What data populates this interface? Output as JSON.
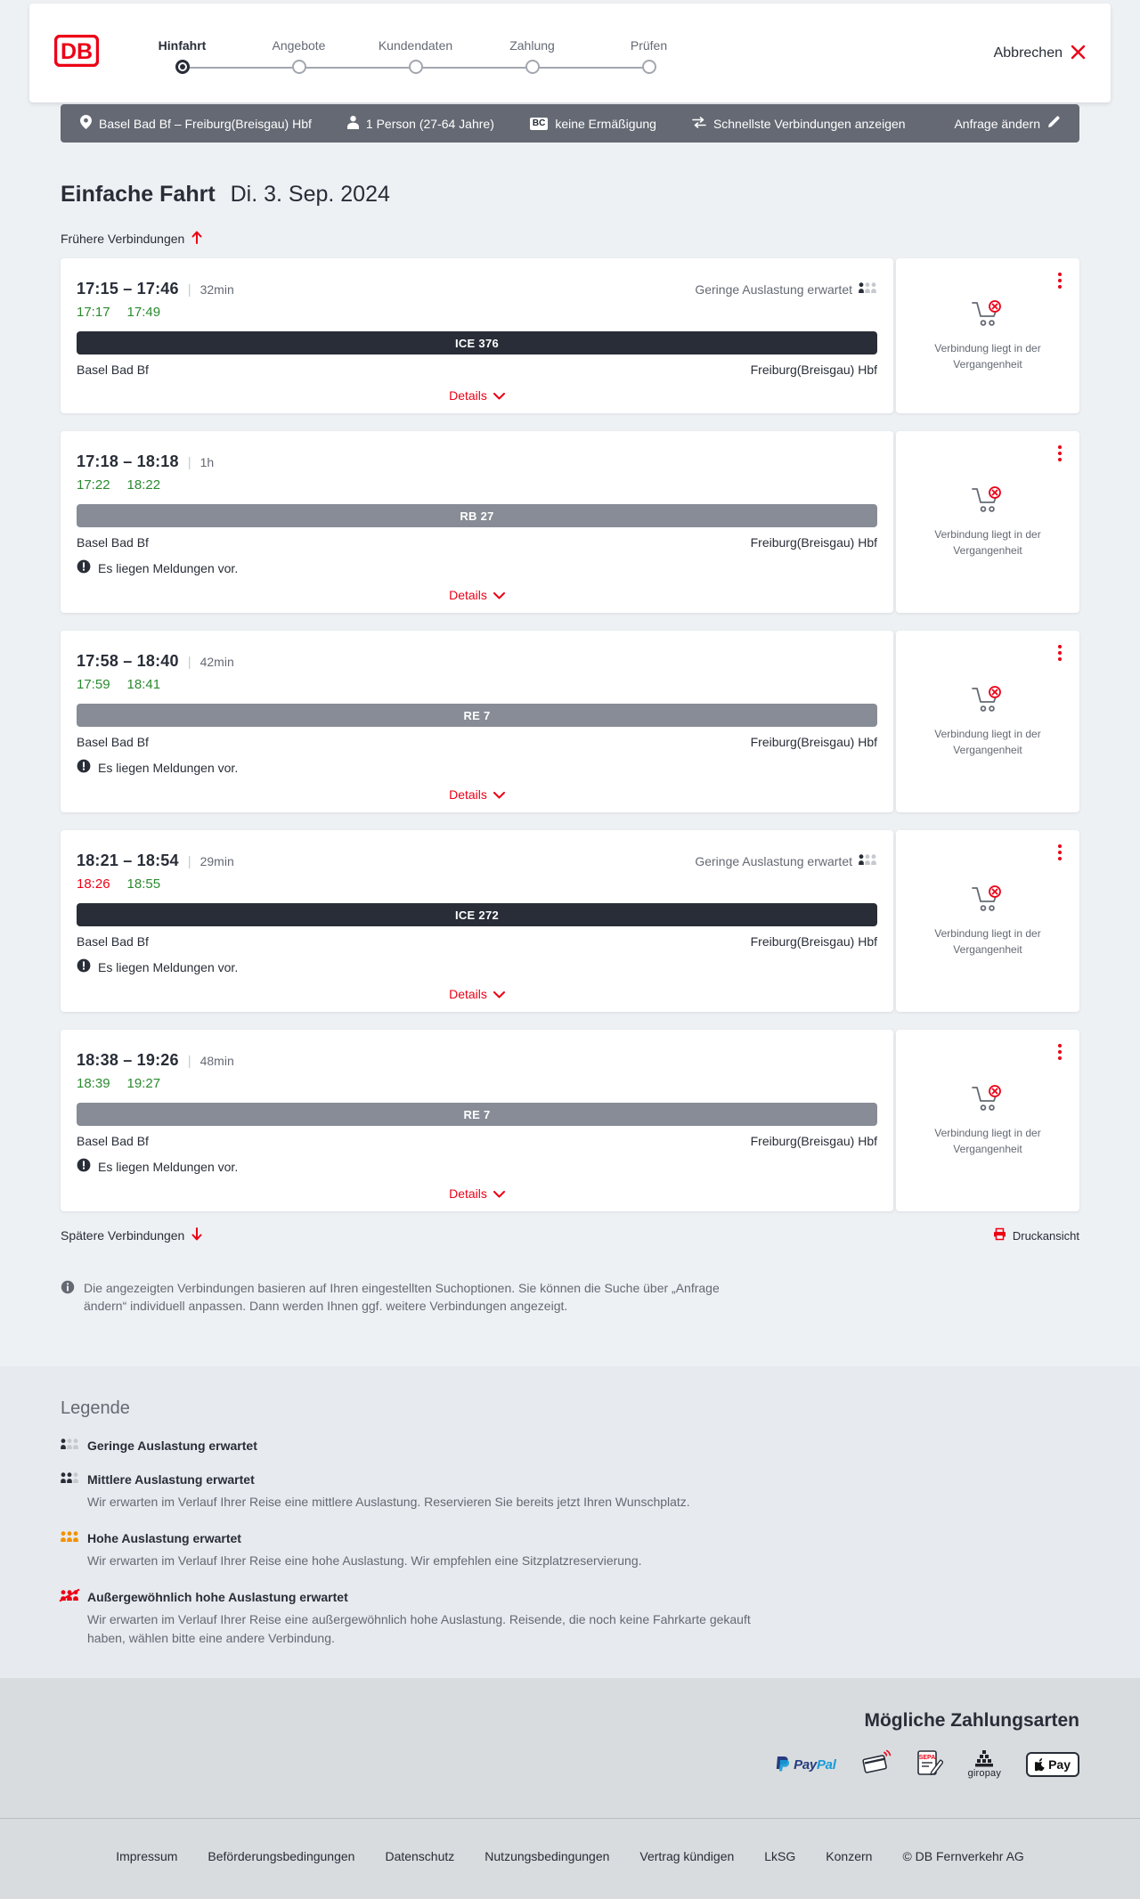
{
  "header": {
    "logo": "DB",
    "cancel_label": "Abbrechen",
    "steps": [
      {
        "label": "Hinfahrt",
        "active": true
      },
      {
        "label": "Angebote",
        "active": false
      },
      {
        "label": "Kundendaten",
        "active": false
      },
      {
        "label": "Zahlung",
        "active": false
      },
      {
        "label": "Prüfen",
        "active": false
      }
    ]
  },
  "querybar": {
    "route": "Basel Bad Bf – Freiburg(Breisgau) Hbf",
    "passengers": "1 Person (27-64 Jahre)",
    "discount_badge": "BC",
    "discount": "keine Ermäßigung",
    "fastest": "Schnellste Verbindungen anzeigen",
    "edit": "Anfrage ändern"
  },
  "page": {
    "title": "Einfache Fahrt",
    "date": "Di. 3. Sep. 2024",
    "earlier": "Frühere Verbindungen",
    "later": "Spätere Verbindungen",
    "print": "Druckansicht",
    "info_line1": "Die angezeigten Verbindungen basieren auf Ihren eingestellten Suchoptionen. Sie können die Suche über „Anfrage",
    "info_line2": "ändern“ individuell anpassen. Dann werden Ihnen ggf. weitere Verbindungen angezeigt."
  },
  "labels": {
    "pipe": "|",
    "details": "Details",
    "past": "Verbindung liegt in der Vergangenheit"
  },
  "connections": [
    {
      "time_range": "17:15 – 17:46",
      "duration": "32min",
      "rt_dep": "17:17",
      "rt_dep_delayed": false,
      "rt_arr": "17:49",
      "rt_arr_delayed": false,
      "train": "ICE 376",
      "train_class": "ice",
      "from": "Basel Bad Bf",
      "to": "Freiburg(Breisgau) Hbf",
      "occupancy": "Geringe Auslastung erwartet",
      "message": null
    },
    {
      "time_range": "17:18 – 18:18",
      "duration": "1h",
      "rt_dep": "17:22",
      "rt_dep_delayed": false,
      "rt_arr": "18:22",
      "rt_arr_delayed": false,
      "train": "RB 27",
      "train_class": "regional",
      "from": "Basel Bad Bf",
      "to": "Freiburg(Breisgau) Hbf",
      "occupancy": null,
      "message": "Es liegen Meldungen vor."
    },
    {
      "time_range": "17:58 – 18:40",
      "duration": "42min",
      "rt_dep": "17:59",
      "rt_dep_delayed": false,
      "rt_arr": "18:41",
      "rt_arr_delayed": false,
      "train": "RE 7",
      "train_class": "regional",
      "from": "Basel Bad Bf",
      "to": "Freiburg(Breisgau) Hbf",
      "occupancy": null,
      "message": "Es liegen Meldungen vor."
    },
    {
      "time_range": "18:21 – 18:54",
      "duration": "29min",
      "rt_dep": "18:26",
      "rt_dep_delayed": true,
      "rt_arr": "18:55",
      "rt_arr_delayed": false,
      "train": "ICE 272",
      "train_class": "ice",
      "from": "Basel Bad Bf",
      "to": "Freiburg(Breisgau) Hbf",
      "occupancy": "Geringe Auslastung erwartet",
      "message": "Es liegen Meldungen vor."
    },
    {
      "time_range": "18:38 – 19:26",
      "duration": "48min",
      "rt_dep": "18:39",
      "rt_dep_delayed": false,
      "rt_arr": "19:27",
      "rt_arr_delayed": false,
      "train": "RE 7",
      "train_class": "regional",
      "from": "Basel Bad Bf",
      "to": "Freiburg(Breisgau) Hbf",
      "occupancy": null,
      "message": "Es liegen Meldungen vor."
    }
  ],
  "legend": {
    "title": "Legende",
    "items": [
      {
        "level": "low",
        "label": "Geringe Auslastung erwartet",
        "desc": ""
      },
      {
        "level": "medium",
        "label": "Mittlere Auslastung erwartet",
        "desc": "Wir erwarten im Verlauf Ihrer Reise eine mittlere Auslastung. Reservieren Sie bereits jetzt Ihren Wunschplatz."
      },
      {
        "level": "high",
        "label": "Hohe Auslastung erwartet",
        "desc": "Wir erwarten im Verlauf Ihrer Reise eine hohe Auslastung. Wir empfehlen eine Sitzplatzreservierung."
      },
      {
        "level": "very-high",
        "label": "Außergewöhnlich hohe Auslastung erwartet",
        "desc": "Wir erwarten im Verlauf Ihrer Reise eine außergewöhnlich hohe Auslastung. Reisende, die noch keine Fahrkarte gekauft haben, wählen bitte eine andere Verbindung."
      }
    ]
  },
  "payments": {
    "title": "Mögliche Zahlungsarten",
    "methods": [
      {
        "id": "paypal",
        "label_p1": "Pay",
        "label_p2": "Pal"
      },
      {
        "id": "card-contactless",
        "label": ""
      },
      {
        "id": "sepa",
        "label": "SEPA"
      },
      {
        "id": "giropay",
        "label": "giropay"
      },
      {
        "id": "apple-pay",
        "label": "Pay"
      }
    ]
  },
  "footer": {
    "links": [
      "Impressum",
      "Beförderungsbedingungen",
      "Datenschutz",
      "Nutzungsbedingungen",
      "Vertrag kündigen",
      "LkSG",
      "Konzern"
    ],
    "copyright": "© DB Fernverkehr AG"
  }
}
